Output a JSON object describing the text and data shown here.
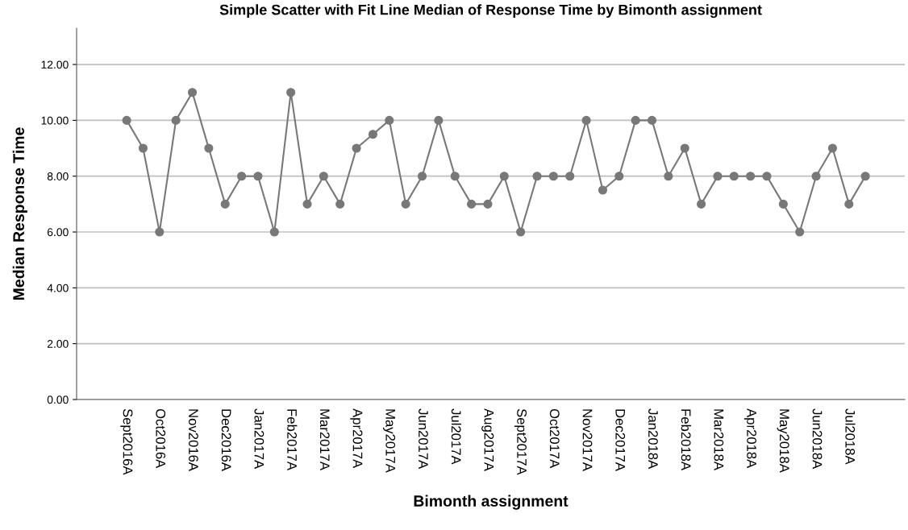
{
  "chart_data": {
    "type": "line",
    "title": "Simple Scatter with Fit Line Median of Response Time by Bimonth assignment",
    "xlabel": "Bimonth assignment",
    "ylabel": "Median Response Time",
    "categories": [
      "Sept2016A",
      null,
      "Oct2016A",
      null,
      "Nov2016A",
      null,
      "Dec2016A",
      null,
      "Jan2017A",
      null,
      "Feb2017A",
      null,
      "Mar2017A",
      null,
      "Apr2017A",
      null,
      "May2017A",
      null,
      "Jun2017A",
      null,
      "Jul2017A",
      null,
      "Aug2017A",
      null,
      "Sept2017A",
      null,
      "Oct2017A",
      null,
      "Nov2017A",
      null,
      "Dec2017A",
      null,
      "Jan2018A",
      null,
      "Feb2018A",
      null,
      "Mar2018A",
      null,
      "Apr2018A",
      null,
      "May2018A",
      null,
      "Jun2018A",
      null,
      "Jul2018A",
      null
    ],
    "series": [
      {
        "color": "#787878",
        "values": [
          10,
          9,
          6,
          10,
          11,
          9,
          7,
          8,
          8,
          6,
          11,
          7,
          8,
          7,
          9,
          9.5,
          10,
          7,
          8,
          10,
          8,
          7,
          7,
          8,
          6,
          8,
          8,
          8,
          10,
          7.5,
          8,
          10,
          10,
          8,
          9,
          7,
          8,
          8,
          8,
          8,
          7,
          6,
          8,
          9,
          7,
          8
        ]
      }
    ],
    "ylim": [
      0,
      13.3
    ],
    "yticks": [
      {
        "value": 0,
        "label": "0.00"
      },
      {
        "value": 2,
        "label": "2.00"
      },
      {
        "value": 4,
        "label": "4.00"
      },
      {
        "value": 6,
        "label": "6.00"
      },
      {
        "value": 8,
        "label": "8.00"
      },
      {
        "value": 10,
        "label": "10.00"
      },
      {
        "value": 12,
        "label": "12.00"
      }
    ],
    "grid": "y",
    "marker": "circle",
    "line_style": "solid"
  }
}
